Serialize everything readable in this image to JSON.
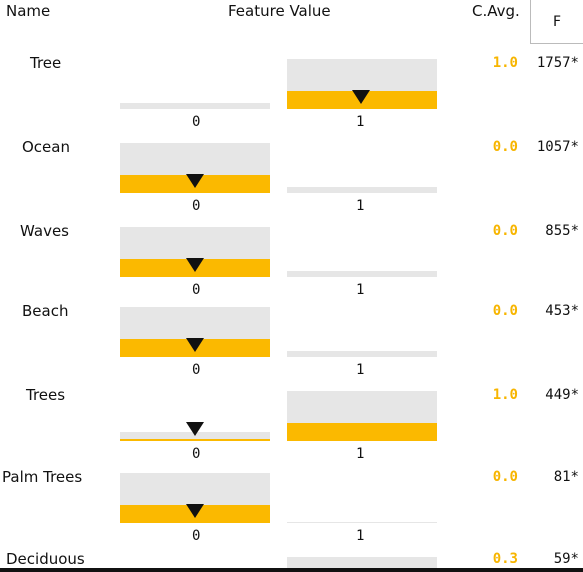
{
  "header": {
    "name": "Name",
    "feature_value": "Feature Value",
    "cavg": "C.Avg.",
    "f": "F"
  },
  "rows": [
    {
      "name": "Tree",
      "cavg": "1.0",
      "f": "1757*",
      "left_label": "0",
      "right_label": "1",
      "value": 1,
      "fill_level": 0.55
    },
    {
      "name": "Ocean",
      "cavg": "0.0",
      "f": "1057*",
      "left_label": "0",
      "right_label": "1",
      "value": 0,
      "fill_level": 0.32
    },
    {
      "name": "Waves",
      "cavg": "0.0",
      "f": "855*",
      "left_label": "0",
      "right_label": "1",
      "value": 0,
      "fill_level": 0.32
    },
    {
      "name": "Beach",
      "cavg": "0.0",
      "f": "453*",
      "left_label": "0",
      "right_label": "1",
      "value": 0,
      "fill_level": 0.32
    },
    {
      "name": "Trees",
      "cavg": "1.0",
      "f": "449*",
      "left_label": "0",
      "right_label": "1",
      "value": 0,
      "fill_level": 0.32
    },
    {
      "name": "Palm Trees",
      "cavg": "0.0",
      "f": "81*",
      "left_label": "0",
      "right_label": "1",
      "value": 0,
      "fill_level": 0.32
    },
    {
      "name": "Deciduous",
      "cavg": "0.3",
      "f": "59*",
      "left_label": "",
      "right_label": "",
      "value": 0,
      "fill_level": 0.0
    }
  ],
  "colors": {
    "accent": "#fbb900",
    "bar_bg": "#e6e6e6",
    "marker": "#111111"
  }
}
